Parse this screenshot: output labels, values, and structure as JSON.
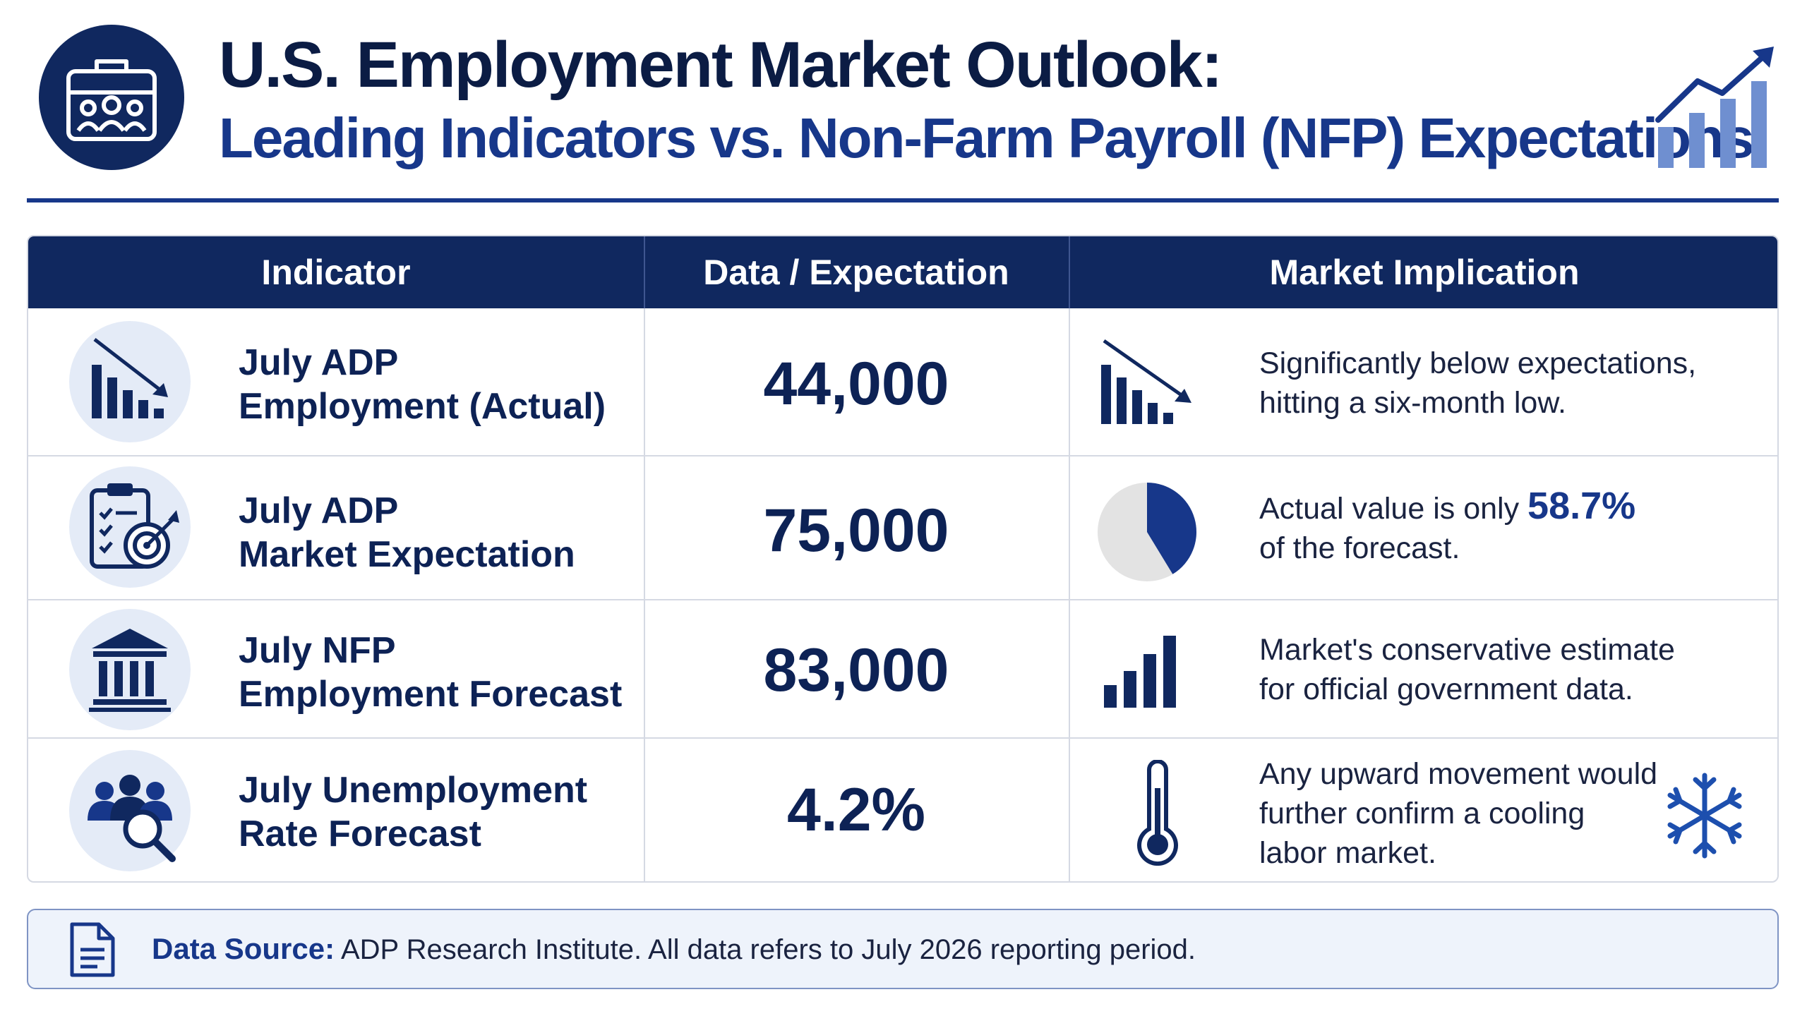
{
  "header": {
    "title": "U.S. Employment Market Outlook:",
    "subtitle": "Leading Indicators vs. Non-Farm Payroll (NFP) Expectations",
    "logo_icon": "briefcase-people-icon",
    "trend_icon": "growth-chart-icon"
  },
  "table": {
    "columns": [
      "Indicator",
      "Data / Expectation",
      "Market Implication"
    ],
    "rows": [
      {
        "indicator_icon": "declining-bar-chart-icon",
        "indicator_line1": "July ADP",
        "indicator_line2": "Employment (Actual)",
        "value": "44,000",
        "implication_icon": "declining-bar-chart-icon",
        "implication_line1": "Significantly below expectations,",
        "implication_line2": "hitting a six-month low."
      },
      {
        "indicator_icon": "clipboard-target-icon",
        "indicator_line1": "July ADP",
        "indicator_line2": "Market Expectation",
        "value": "75,000",
        "implication_icon": "pie-chart-icon",
        "implication_pie_fraction": 0.413,
        "implication_line1_prefix": "Actual value is only",
        "implication_highlight": "58.7%",
        "implication_line2": "of the forecast."
      },
      {
        "indicator_icon": "government-building-icon",
        "indicator_line1": "July NFP",
        "indicator_line2": "Employment Forecast",
        "value": "83,000",
        "implication_icon": "rising-bar-chart-icon",
        "implication_line1": "Market's conservative estimate",
        "implication_line2": "for official government data."
      },
      {
        "indicator_icon": "people-search-icon",
        "indicator_line1": "July Unemployment",
        "indicator_line2": "Rate Forecast",
        "value": "4.2%",
        "implication_icon": "thermometer-icon",
        "implication_line1": "Any upward movement would",
        "implication_line2": "further confirm a cooling",
        "implication_line3": "labor market.",
        "extra_icon": "snowflake-icon"
      }
    ]
  },
  "footer": {
    "icon": "document-icon",
    "label": "Data Source:",
    "text": "ADP Research Institute.  All data refers to July 2026 reporting period."
  },
  "colors": {
    "navy": "#10285f",
    "accent_blue": "#17378a",
    "icon_bg": "#e4ebf7",
    "chart_light_blue": "#6f8fd0"
  }
}
